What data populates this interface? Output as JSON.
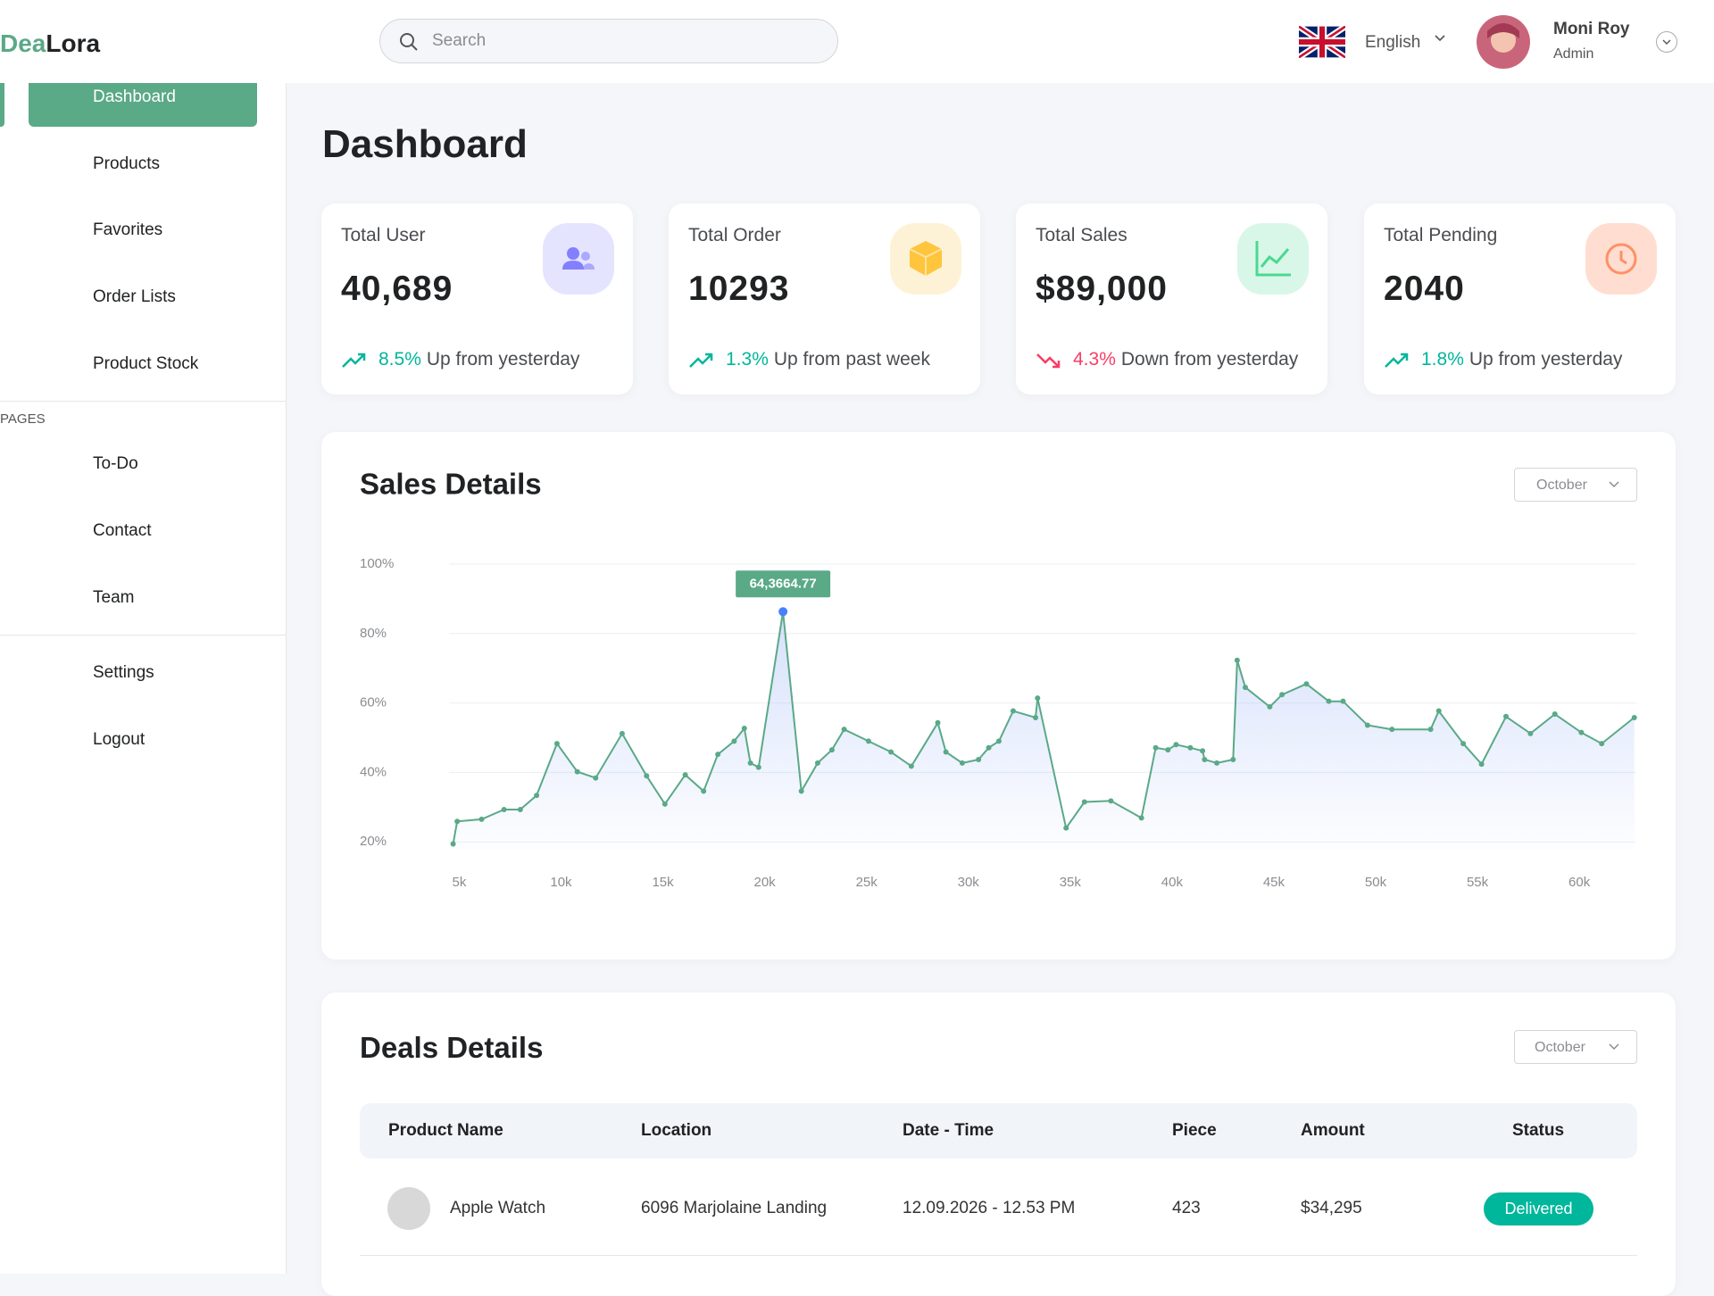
{
  "brand": {
    "first": "Dea",
    "second": "Lora"
  },
  "search_placeholder": "Search",
  "language": "English",
  "user": {
    "name": "Moni Roy",
    "role": "Admin"
  },
  "nav": {
    "main": [
      "Dashboard",
      "Products",
      "Favorites",
      "Order Lists",
      "Product Stock"
    ],
    "section": "PAGES",
    "pages": [
      "To-Do",
      "Contact",
      "Team"
    ],
    "bottom": [
      "Settings",
      "Logout"
    ]
  },
  "page_title": "Dashboard",
  "cards": [
    {
      "title": "Total User",
      "value": "40,689",
      "change": "8.5%",
      "note": "Up from yesterday",
      "trend": "up"
    },
    {
      "title": "Total Order",
      "value": "10293",
      "change": "1.3%",
      "note": "Up from past week",
      "trend": "up"
    },
    {
      "title": "Total Sales",
      "value": "$89,000",
      "change": "4.3%",
      "note": "Down from yesterday",
      "trend": "down"
    },
    {
      "title": "Total Pending",
      "value": "2040",
      "change": "1.8%",
      "note": "Up from yesterday",
      "trend": "up"
    }
  ],
  "sales_filter": "October",
  "chart_data": {
    "type": "line",
    "title": "Sales Details",
    "annotation": "64,3664.77",
    "color": "#5aa987",
    "area": true,
    "grid": true,
    "x": [
      4700,
      4900,
      6100,
      7200,
      8000,
      8800,
      9800,
      10800,
      11700,
      13000,
      14200,
      15100,
      16100,
      17000,
      17700,
      18500,
      19000,
      19300,
      19700,
      20900,
      21800,
      22600,
      23300,
      23900,
      25100,
      26200,
      27200,
      28500,
      28900,
      29700,
      30500,
      31000,
      31500,
      32200,
      33300,
      33400,
      34800,
      35700,
      37000,
      38500,
      39200,
      39800,
      40200,
      40900,
      41500,
      41600,
      42200,
      43000,
      43200,
      43600,
      44800,
      45400,
      46600,
      47700,
      48400,
      49600,
      50800,
      52700,
      53100,
      54300,
      55200,
      56400,
      57600,
      58800,
      60100,
      61100,
      62700
    ],
    "values": [
      19.4,
      25.9,
      26.5,
      29.3,
      29.3,
      33.4,
      48.3,
      40.2,
      38.4,
      51.2,
      39.0,
      30.9,
      39.3,
      34.6,
      45.2,
      49.0,
      52.7,
      42.7,
      41.5,
      86.3,
      34.6,
      42.7,
      46.5,
      52.4,
      49.0,
      45.9,
      41.8,
      54.3,
      45.9,
      42.7,
      43.7,
      47.1,
      49.0,
      57.7,
      55.8,
      61.4,
      24.0,
      31.5,
      31.8,
      26.9,
      47.1,
      46.5,
      48.0,
      47.1,
      46.2,
      43.7,
      42.7,
      43.7,
      72.3,
      64.5,
      58.9,
      62.4,
      65.5,
      60.5,
      60.5,
      53.6,
      52.4,
      52.4,
      57.7,
      48.3,
      42.4,
      56.1,
      51.2,
      56.8,
      51.5,
      48.3,
      55.8
    ],
    "xlim": [
      4500,
      62800
    ],
    "ylim": [
      18,
      100
    ],
    "xticks": [
      {
        "value": 5000,
        "label": "5k"
      },
      {
        "value": 10000,
        "label": "10k"
      },
      {
        "value": 15000,
        "label": "15k"
      },
      {
        "value": 20000,
        "label": "20k"
      },
      {
        "value": 25000,
        "label": "25k"
      },
      {
        "value": 30000,
        "label": "30k"
      },
      {
        "value": 35000,
        "label": "35k"
      },
      {
        "value": 40000,
        "label": "40k"
      },
      {
        "value": 45000,
        "label": "45k"
      },
      {
        "value": 50000,
        "label": "50k"
      },
      {
        "value": 55000,
        "label": "55k"
      },
      {
        "value": 60000,
        "label": "60k"
      }
    ],
    "yticks": [
      {
        "value": 20,
        "label": "20%"
      },
      {
        "value": 40,
        "label": "40%"
      },
      {
        "value": 60,
        "label": "60%"
      },
      {
        "value": 80,
        "label": "80%"
      },
      {
        "value": 100,
        "label": "100%"
      }
    ]
  },
  "deals": {
    "title": "Deals Details",
    "filter": "October",
    "columns": [
      "Product Name",
      "Location",
      "Date - Time",
      "Piece",
      "Amount",
      "Status"
    ],
    "rows": [
      [
        "Apple Watch",
        "6096 Marjolaine Landing",
        "12.09.2026 - 12.53 PM",
        "423",
        "$34,295",
        "Delivered"
      ]
    ]
  }
}
